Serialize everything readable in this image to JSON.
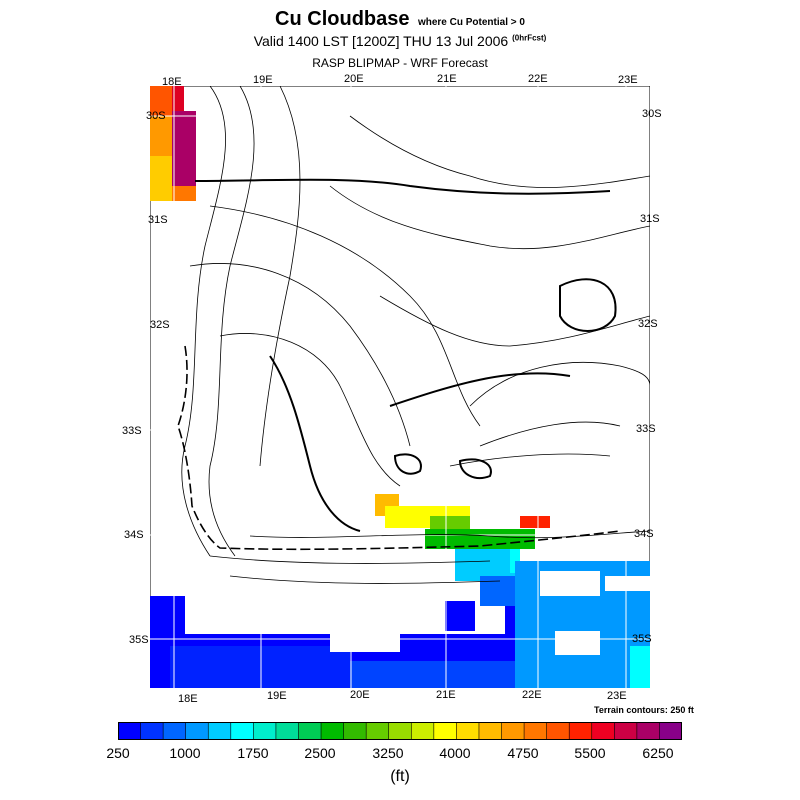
{
  "title": {
    "main": "Cu Cloudbase",
    "condition": "where Cu Potential > 0"
  },
  "subtitle": {
    "text": "Valid 1400 LST [1200Z] THU 13 Jul 2006",
    "tag": "(0hrFcst)"
  },
  "source": "RASP BLIPMAP - WRF Forecast",
  "map": {
    "top_lon_labels": [
      "18E",
      "19E",
      "20E",
      "21E",
      "22E",
      "23E"
    ],
    "bottom_lon_labels": [
      "18E",
      "19E",
      "20E",
      "21E",
      "22E",
      "23E"
    ],
    "left_lat_labels": [
      "30S",
      "31S",
      "32S",
      "33S",
      "34S",
      "35S"
    ],
    "right_lat_labels": [
      "30S",
      "31S",
      "32S",
      "33S",
      "34S",
      "35S"
    ],
    "terrain_note": "Terrain contours: 250 ft"
  },
  "colorbar": {
    "units": "(ft)",
    "tick_labels": [
      "250",
      "1000",
      "1750",
      "2500",
      "3250",
      "4000",
      "4750",
      "5500",
      "6250"
    ],
    "colors": [
      "#0000ff",
      "#0033ff",
      "#0066ff",
      "#0099ff",
      "#00ccff",
      "#00ffff",
      "#00eecc",
      "#00dd99",
      "#00cc55",
      "#00bb00",
      "#33bb00",
      "#66cc00",
      "#99dd00",
      "#ccee00",
      "#ffff00",
      "#ffdd00",
      "#ffbb00",
      "#ff9900",
      "#ff7700",
      "#ff5500",
      "#ff2200",
      "#ee0022",
      "#cc0044",
      "#aa0066",
      "#880088"
    ]
  }
}
